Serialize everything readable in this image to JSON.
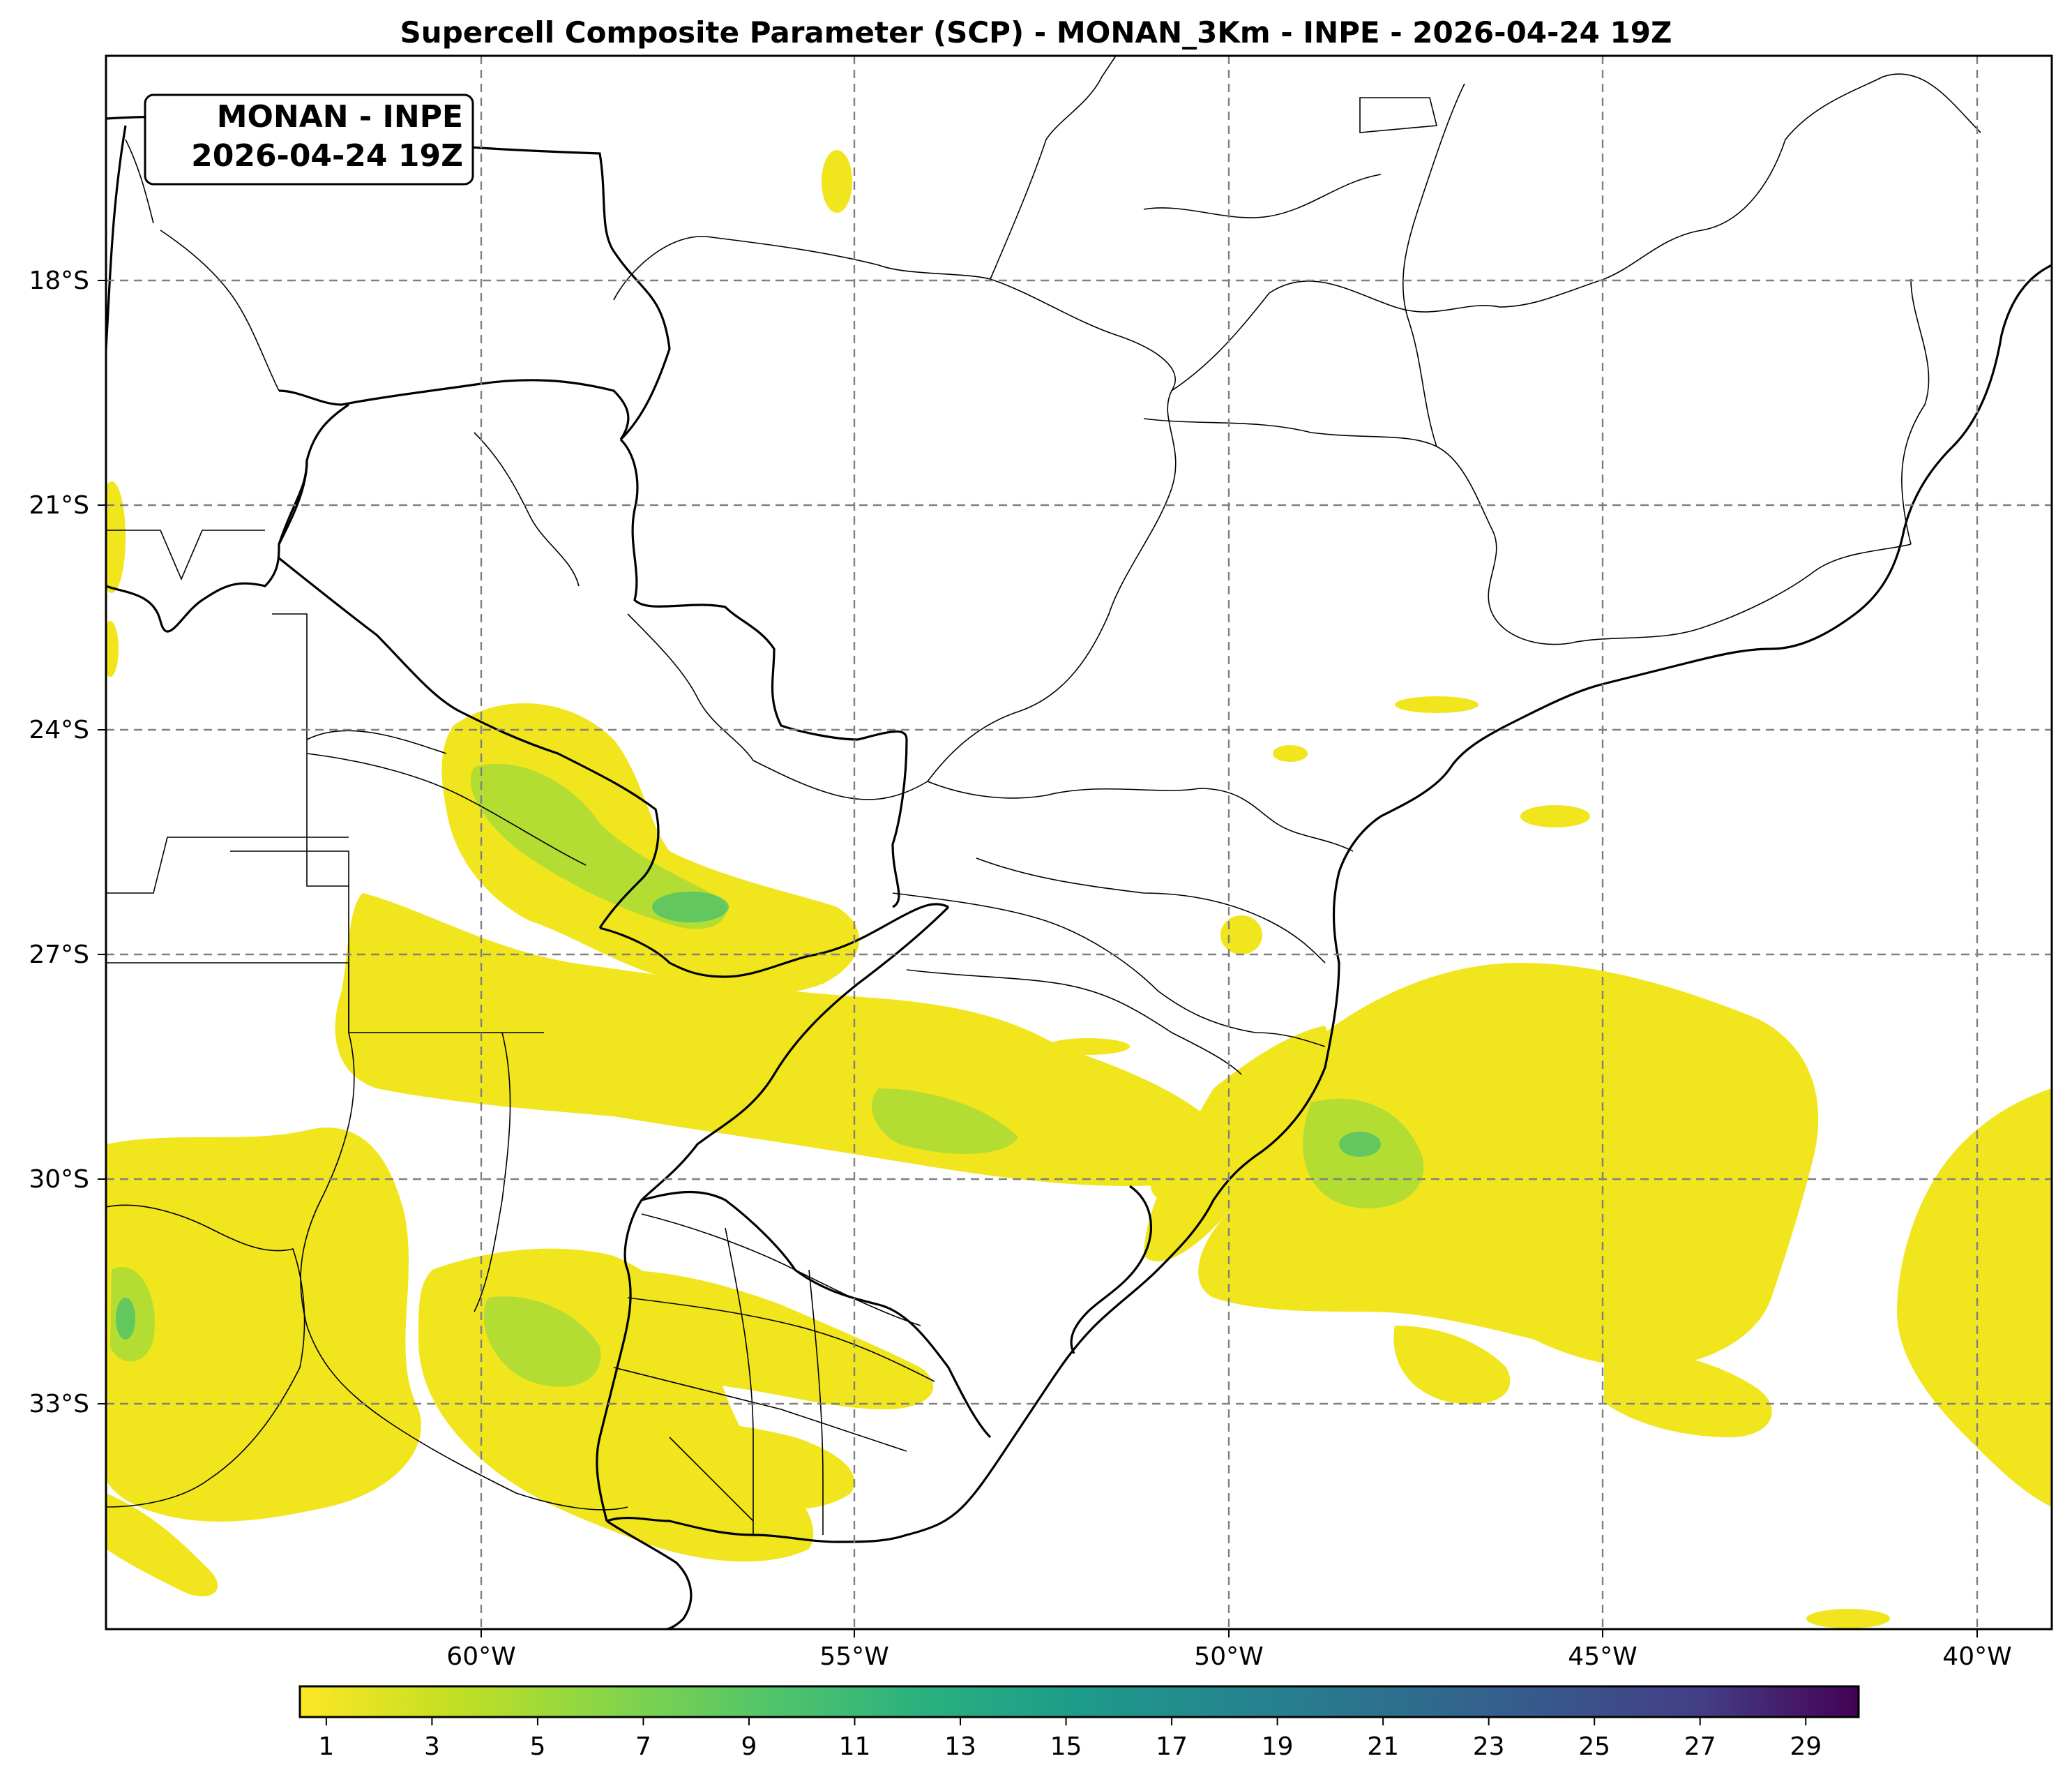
{
  "title": "Supercell Composite Parameter (SCP) - MONAN_3Km - INPE - 2026-04-24 19Z",
  "info_box": {
    "line1": "MONAN - INPE",
    "line2": "2026-04-24 19Z"
  },
  "map": {
    "parameter": "Supercell Composite Parameter (SCP)",
    "model": "MONAN_3Km",
    "lon_range": [
      -65,
      -39
    ],
    "lat_range": [
      -38,
      -15
    ],
    "lon_gridlines": [
      -60,
      -55,
      -50,
      -45,
      -40
    ],
    "lat_gridlines": [
      -18,
      -21,
      -24,
      -27,
      -30,
      -33
    ],
    "lon_labels": [
      "60°W",
      "55°W",
      "50°W",
      "45°W",
      "40°W"
    ],
    "lat_labels": [
      "18°S",
      "21°S",
      "24°S",
      "27°S",
      "30°S",
      "33°S"
    ],
    "gridlines": "dashed gray",
    "colors": {
      "low": "#f1e51d",
      "mid": "#9dd93b",
      "high": "#40bd72"
    }
  },
  "colorbar": {
    "colormap": "viridis_r",
    "range": [
      0.5,
      30
    ],
    "tick_labels": [
      "1",
      "3",
      "5",
      "7",
      "9",
      "11",
      "13",
      "15",
      "17",
      "19",
      "21",
      "23",
      "25",
      "27",
      "29"
    ]
  }
}
